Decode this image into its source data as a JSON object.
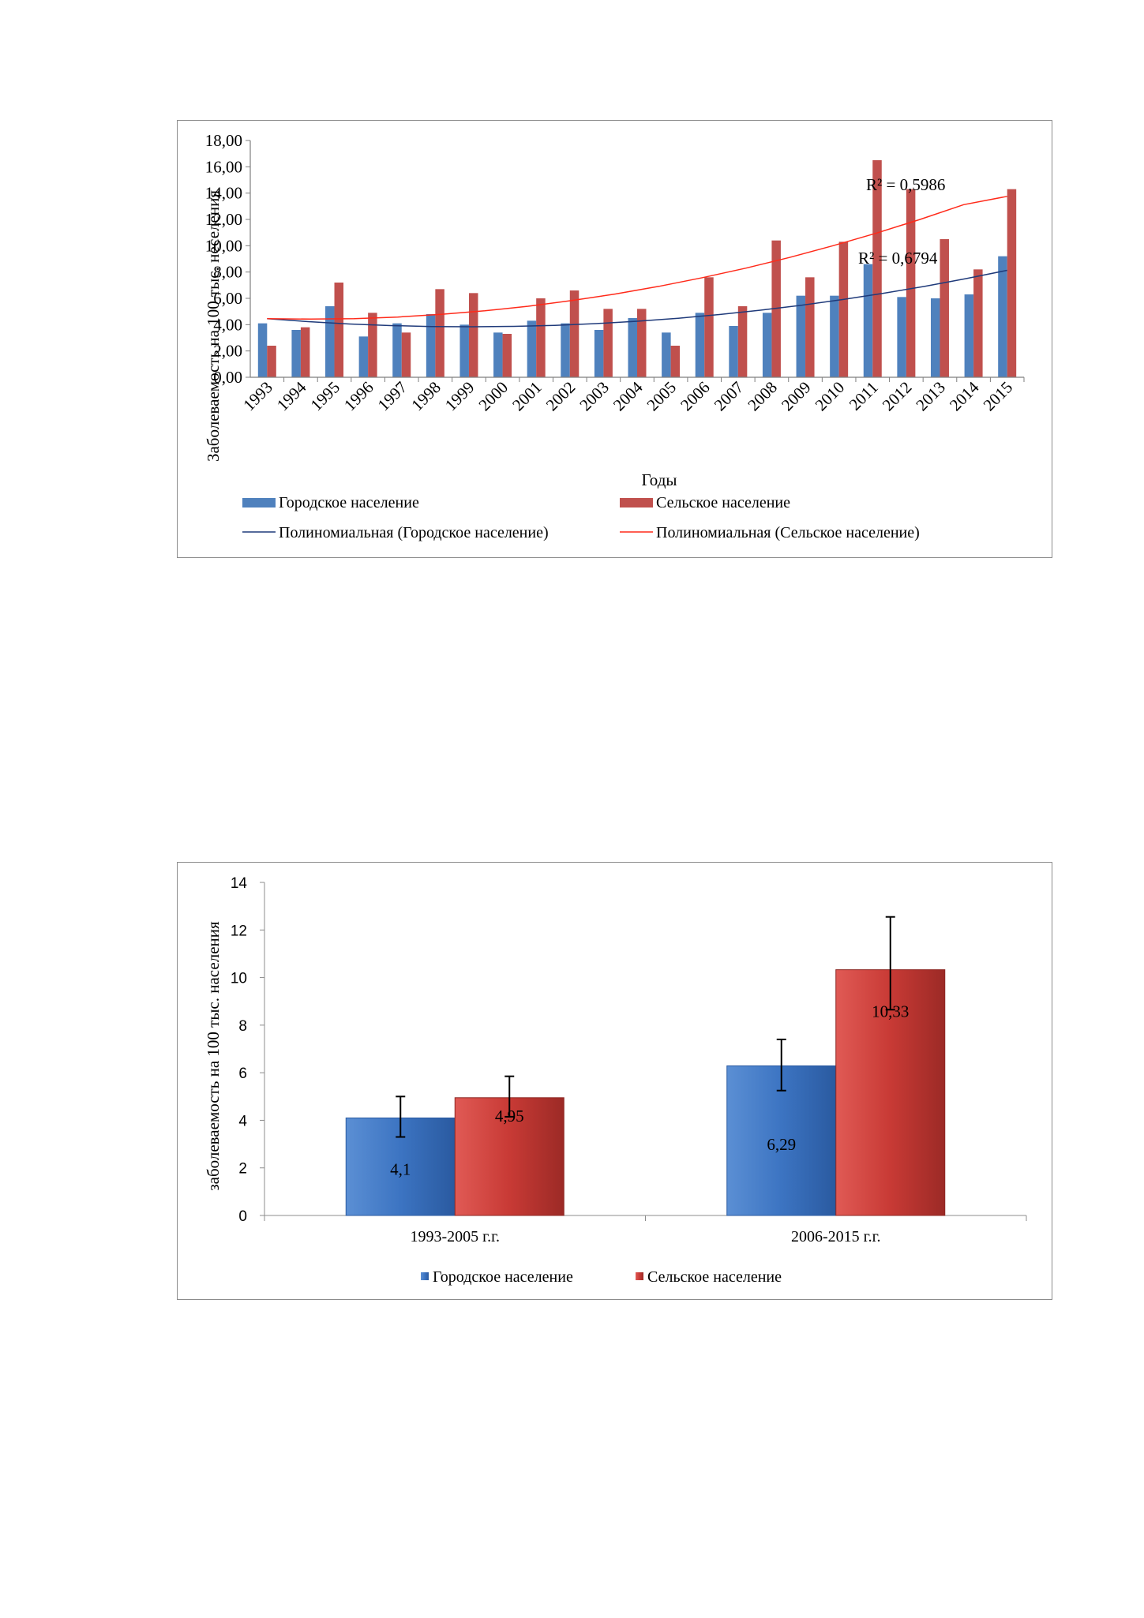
{
  "chart_data": [
    {
      "type": "bar",
      "title": "",
      "xlabel": "Годы",
      "ylabel": "Заболеваемость на 100 тыс. неселения",
      "ylim": [
        0,
        18
      ],
      "yticks": [
        "0,00",
        "2,00",
        "4,00",
        "6,00",
        "8,00",
        "10,00",
        "12,00",
        "14,00",
        "16,00",
        "18,00"
      ],
      "categories": [
        "1993",
        "1994",
        "1995",
        "1996",
        "1997",
        "1998",
        "1999",
        "2000",
        "2001",
        "2002",
        "2003",
        "2004",
        "2005",
        "2006",
        "2007",
        "2008",
        "2009",
        "2010",
        "2011",
        "2012",
        "2013",
        "2014",
        "2015"
      ],
      "series": [
        {
          "name": "Городское население",
          "color": "#4f81bd",
          "values": [
            4.1,
            3.6,
            5.4,
            3.1,
            4.1,
            4.8,
            4.0,
            3.4,
            4.3,
            4.1,
            3.6,
            4.5,
            3.4,
            4.9,
            3.9,
            4.9,
            6.2,
            6.2,
            8.6,
            6.1,
            6.0,
            6.3,
            9.2
          ]
        },
        {
          "name": "Сельское население",
          "color": "#c0504d",
          "values": [
            2.4,
            3.8,
            7.2,
            4.9,
            3.4,
            6.7,
            6.4,
            3.3,
            6.0,
            6.6,
            5.2,
            5.2,
            2.4,
            7.6,
            5.4,
            10.4,
            7.6,
            10.3,
            16.5,
            14.3,
            10.5,
            8.2,
            14.3
          ]
        }
      ],
      "trendlines": [
        {
          "name": "Полиномиальная (Городское население)",
          "color": "#1f3a7a",
          "r2_label": "R² = 0,6794",
          "values": [
            4.45,
            4.23,
            4.05,
            3.93,
            3.86,
            3.84,
            3.87,
            3.95,
            4.08,
            4.26,
            4.49,
            4.77,
            5.1,
            5.48,
            5.91,
            6.39,
            6.92,
            7.5,
            8.13
          ]
        },
        {
          "name": "Полиномиальная (Сельское население)",
          "color": "#ff2a1a",
          "r2_label": "R² = 0,5986",
          "values": [
            4.45,
            4.42,
            4.46,
            4.58,
            4.78,
            5.05,
            5.4,
            5.83,
            6.33,
            6.91,
            7.57,
            8.3,
            9.11,
            10.0,
            10.96,
            12.0,
            13.12,
            13.75
          ]
        }
      ],
      "legend_position": "bottom"
    },
    {
      "type": "bar",
      "title": "",
      "xlabel": "",
      "ylabel": "заболеваемость на 100 тыс. населения",
      "ylim": [
        0,
        14
      ],
      "yticks": [
        "0",
        "2",
        "4",
        "6",
        "8",
        "10",
        "12",
        "14"
      ],
      "categories": [
        "1993-2005 г.г.",
        "2006-2015 г.г."
      ],
      "series": [
        {
          "name": "Городское население",
          "color": "#4f81bd",
          "values": [
            4.1,
            6.29
          ],
          "labels": [
            "4,1",
            "6,29"
          ],
          "errors": [
            [
              3.3,
              5.0
            ],
            [
              5.25,
              7.4
            ]
          ]
        },
        {
          "name": "Сельское население",
          "color": "#c0504d",
          "values": [
            4.95,
            10.33
          ],
          "labels": [
            "4,95",
            "10,33"
          ],
          "errors": [
            [
              4.15,
              5.85
            ],
            [
              8.65,
              12.55
            ]
          ]
        }
      ],
      "legend_position": "bottom"
    }
  ]
}
